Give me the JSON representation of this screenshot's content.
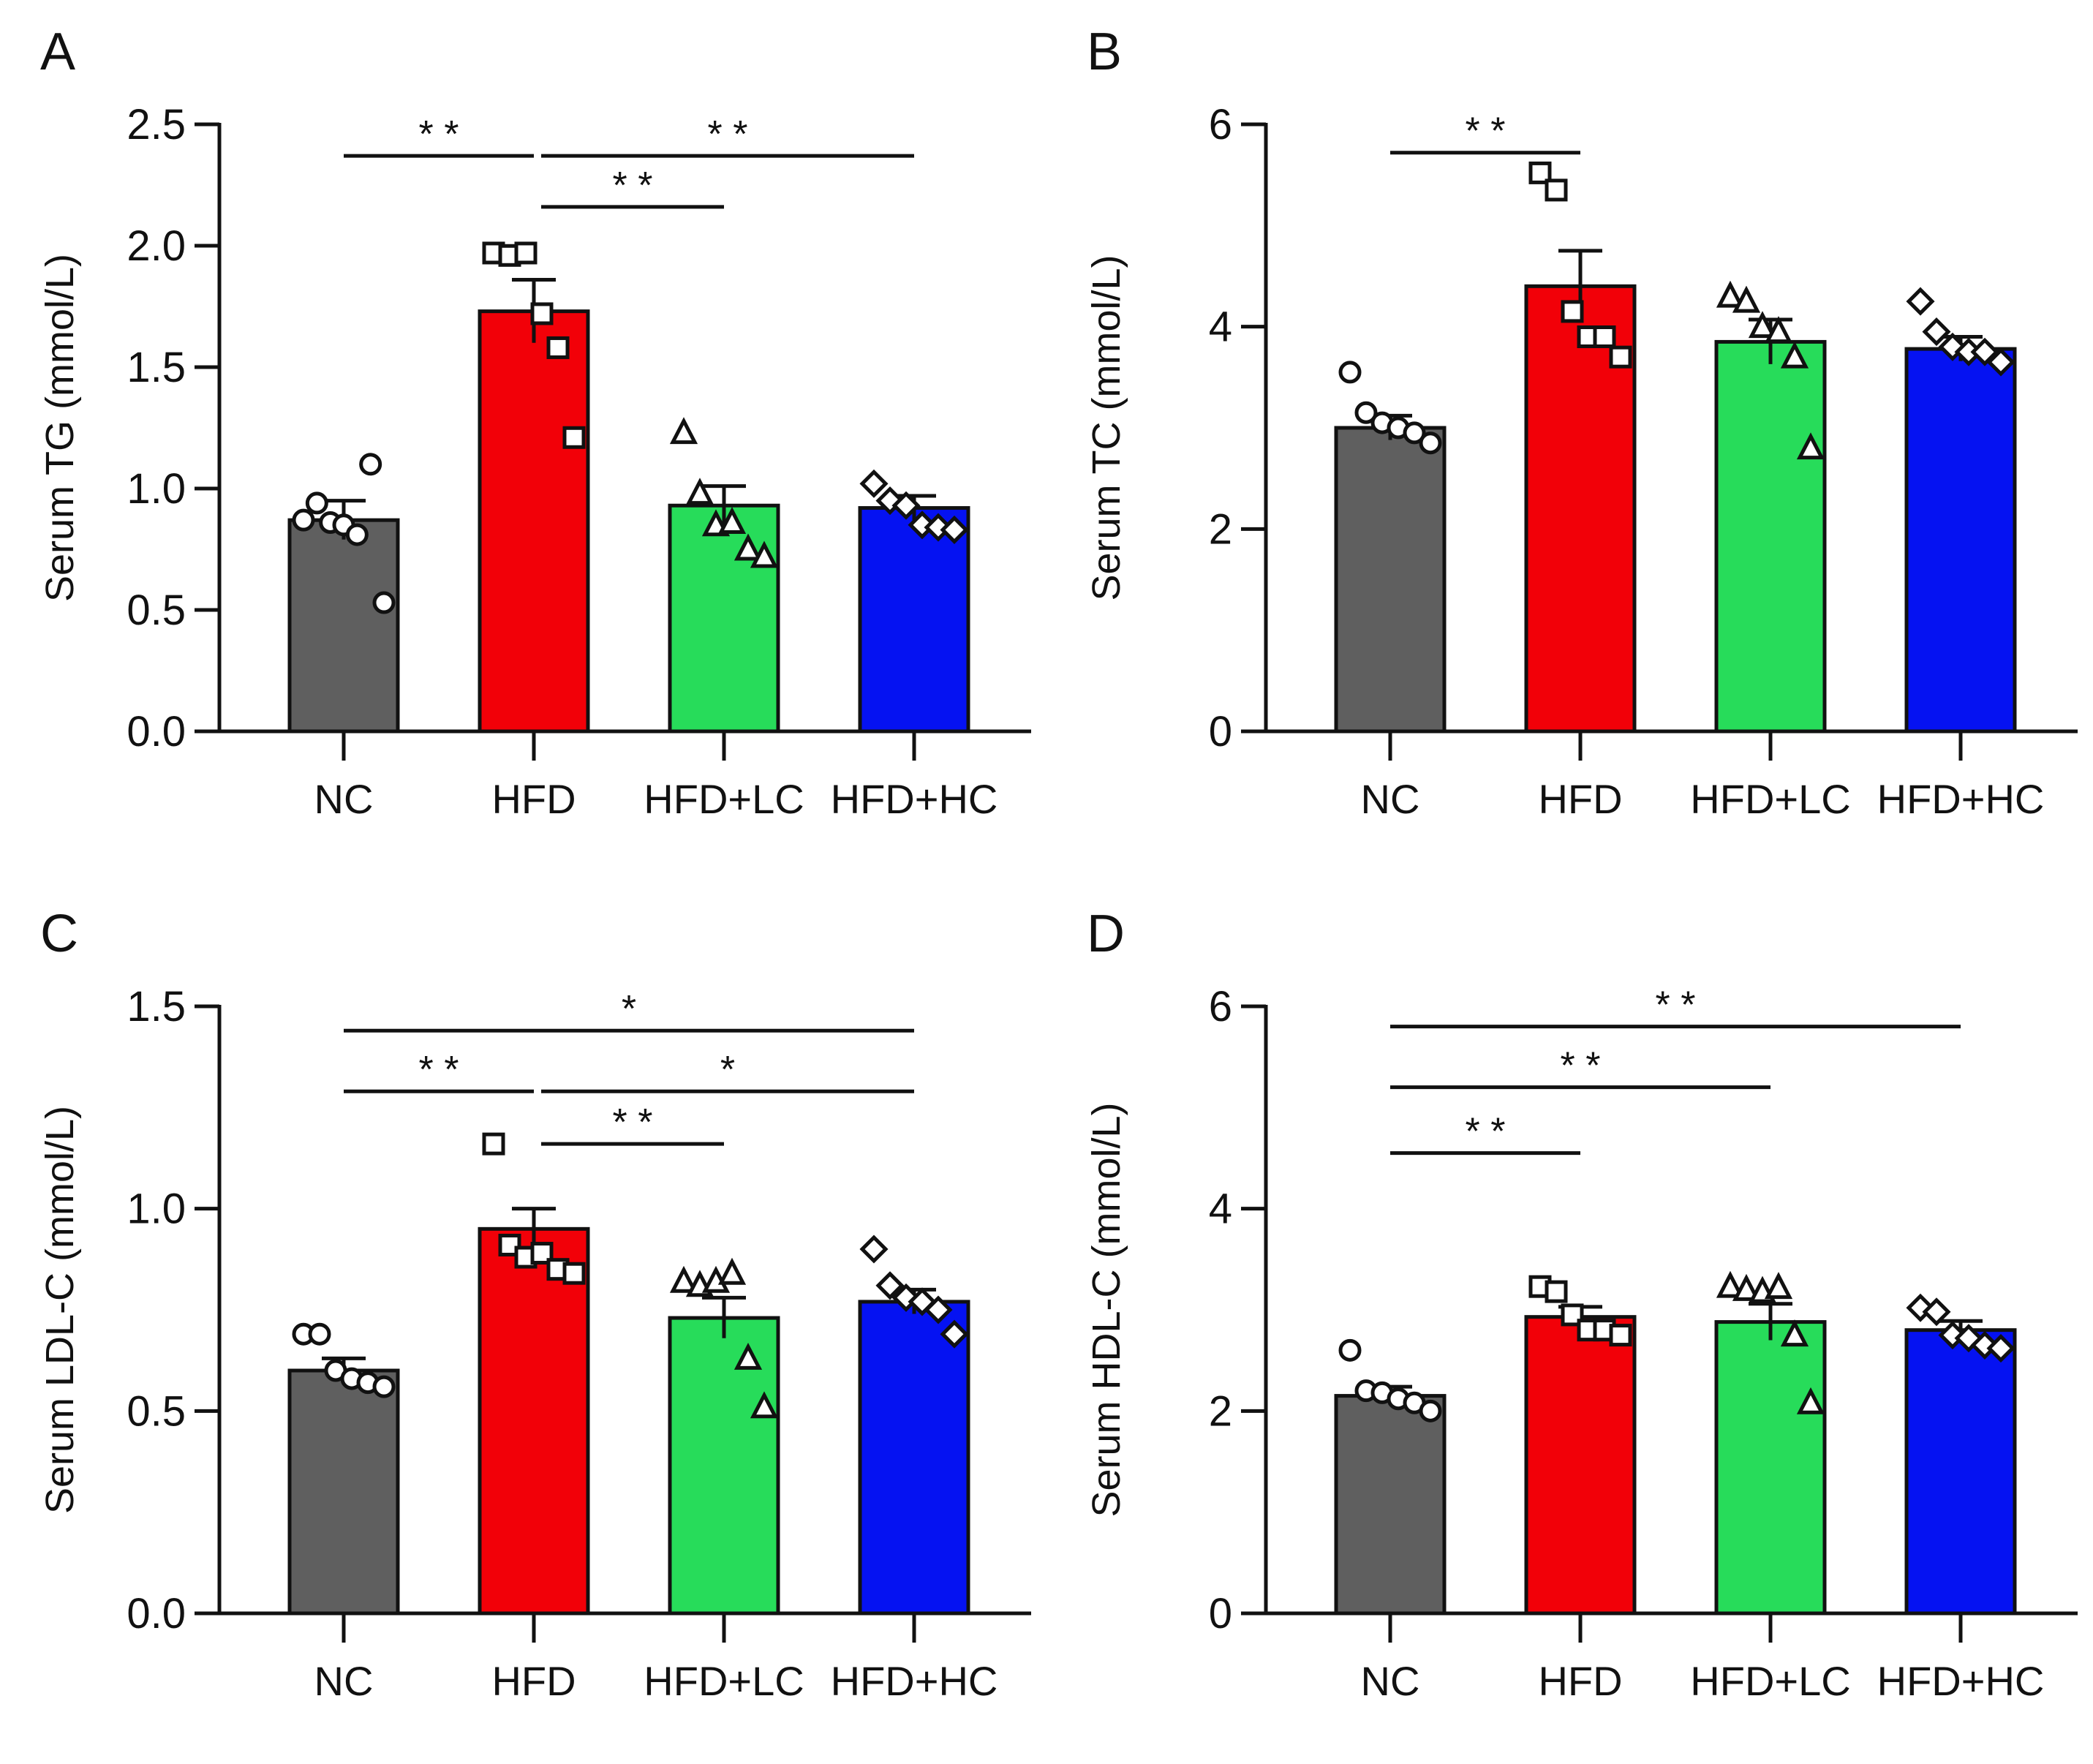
{
  "figure": {
    "colors": {
      "NC": "#5f5f5f",
      "HFD": "#f20008",
      "HFD+LC": "#27dc5a",
      "HFD+HC": "#0512f2",
      "ink": "#111111"
    },
    "markers": {
      "NC": "circle",
      "HFD": "square",
      "HFD+LC": "triangle",
      "HFD+HC": "diamond"
    }
  },
  "chart_data": [
    {
      "panel": "A",
      "type": "bar",
      "ylabel": "Serum TG (mmol/L)",
      "categories": [
        "NC",
        "HFD",
        "HFD+LC",
        "HFD+HC"
      ],
      "values": [
        0.87,
        1.73,
        0.93,
        0.92
      ],
      "sem": [
        0.08,
        0.13,
        0.08,
        0.05
      ],
      "points": [
        [
          0.87,
          0.94,
          0.86,
          0.85,
          0.81,
          1.1,
          0.53
        ],
        [
          1.97,
          1.96,
          1.97,
          1.72,
          1.58,
          1.21
        ],
        [
          1.23,
          0.98,
          0.85,
          0.86,
          0.75,
          0.72
        ],
        [
          1.02,
          0.95,
          0.93,
          0.85,
          0.84,
          0.83
        ]
      ],
      "ylim": [
        0.0,
        2.5
      ],
      "yticks": [
        "0.0",
        "0.5",
        "1.0",
        "1.5",
        "2.0",
        "2.5"
      ],
      "yticks_num": [
        0.0,
        0.5,
        1.0,
        1.5,
        2.0,
        2.5
      ],
      "significance": [
        {
          "from": 0,
          "to": 1,
          "label": "* *",
          "y": 2.37
        },
        {
          "from": 1,
          "to": 3,
          "label": "* *",
          "y": 2.37
        },
        {
          "from": 1,
          "to": 2,
          "label": "* *",
          "y": 2.16
        }
      ]
    },
    {
      "panel": "B",
      "type": "bar",
      "ylabel": "Serum TC (mmol/L)",
      "categories": [
        "NC",
        "HFD",
        "HFD+LC",
        "HFD+HC"
      ],
      "values": [
        3.0,
        4.4,
        3.85,
        3.78
      ],
      "sem": [
        0.12,
        0.35,
        0.22,
        0.12
      ],
      "points": [
        [
          3.55,
          3.15,
          3.05,
          3.0,
          2.95,
          2.85
        ],
        [
          5.52,
          5.35,
          4.15,
          3.9,
          3.9,
          3.7
        ],
        [
          4.3,
          4.25,
          4.0,
          3.95,
          3.7,
          2.8
        ],
        [
          4.25,
          3.95,
          3.8,
          3.75,
          3.75,
          3.65
        ]
      ],
      "ylim": [
        0,
        6
      ],
      "yticks": [
        "0",
        "2",
        "4",
        "6"
      ],
      "yticks_num": [
        0,
        2,
        4,
        6
      ],
      "significance": [
        {
          "from": 0,
          "to": 1,
          "label": "* *",
          "y": 5.72
        }
      ]
    },
    {
      "panel": "C",
      "type": "bar",
      "ylabel": "Serum LDL-C (mmol/L)",
      "categories": [
        "NC",
        "HFD",
        "HFD+LC",
        "HFD+HC"
      ],
      "values": [
        0.6,
        0.95,
        0.73,
        0.77
      ],
      "sem": [
        0.03,
        0.05,
        0.05,
        0.03
      ],
      "points": [
        [
          0.69,
          0.69,
          0.6,
          0.58,
          0.57,
          0.56
        ],
        [
          1.16,
          0.91,
          0.88,
          0.89,
          0.85,
          0.84
        ],
        [
          0.82,
          0.81,
          0.82,
          0.84,
          0.63,
          0.51
        ],
        [
          0.9,
          0.81,
          0.78,
          0.77,
          0.75,
          0.69
        ]
      ],
      "ylim": [
        0.0,
        1.5
      ],
      "yticks": [
        "0.0",
        "0.5",
        "1.0",
        "1.5"
      ],
      "yticks_num": [
        0.0,
        0.5,
        1.0,
        1.5
      ],
      "significance": [
        {
          "from": 0,
          "to": 3,
          "label": "*",
          "y": 1.44
        },
        {
          "from": 0,
          "to": 1,
          "label": "* *",
          "y": 1.29
        },
        {
          "from": 1,
          "to": 3,
          "label": "*",
          "y": 1.29
        },
        {
          "from": 1,
          "to": 2,
          "label": "* *",
          "y": 1.16
        }
      ]
    },
    {
      "panel": "D",
      "type": "bar",
      "ylabel": "Serum HDL-C (mmol/L)",
      "categories": [
        "NC",
        "HFD",
        "HFD+LC",
        "HFD+HC"
      ],
      "values": [
        2.15,
        2.93,
        2.88,
        2.8
      ],
      "sem": [
        0.09,
        0.1,
        0.18,
        0.09
      ],
      "points": [
        [
          2.6,
          2.2,
          2.18,
          2.12,
          2.08,
          2.0
        ],
        [
          3.23,
          3.18,
          2.95,
          2.8,
          2.8,
          2.75
        ],
        [
          3.23,
          3.2,
          3.18,
          3.22,
          2.75,
          2.08
        ],
        [
          3.02,
          2.98,
          2.75,
          2.72,
          2.65,
          2.62
        ]
      ],
      "ylim": [
        0,
        6
      ],
      "yticks": [
        "0",
        "2",
        "4",
        "6"
      ],
      "yticks_num": [
        0,
        2,
        4,
        6
      ],
      "significance": [
        {
          "from": 0,
          "to": 3,
          "label": "* *",
          "y": 5.8
        },
        {
          "from": 0,
          "to": 2,
          "label": "* *",
          "y": 5.2
        },
        {
          "from": 0,
          "to": 1,
          "label": "* *",
          "y": 4.55
        }
      ]
    }
  ]
}
